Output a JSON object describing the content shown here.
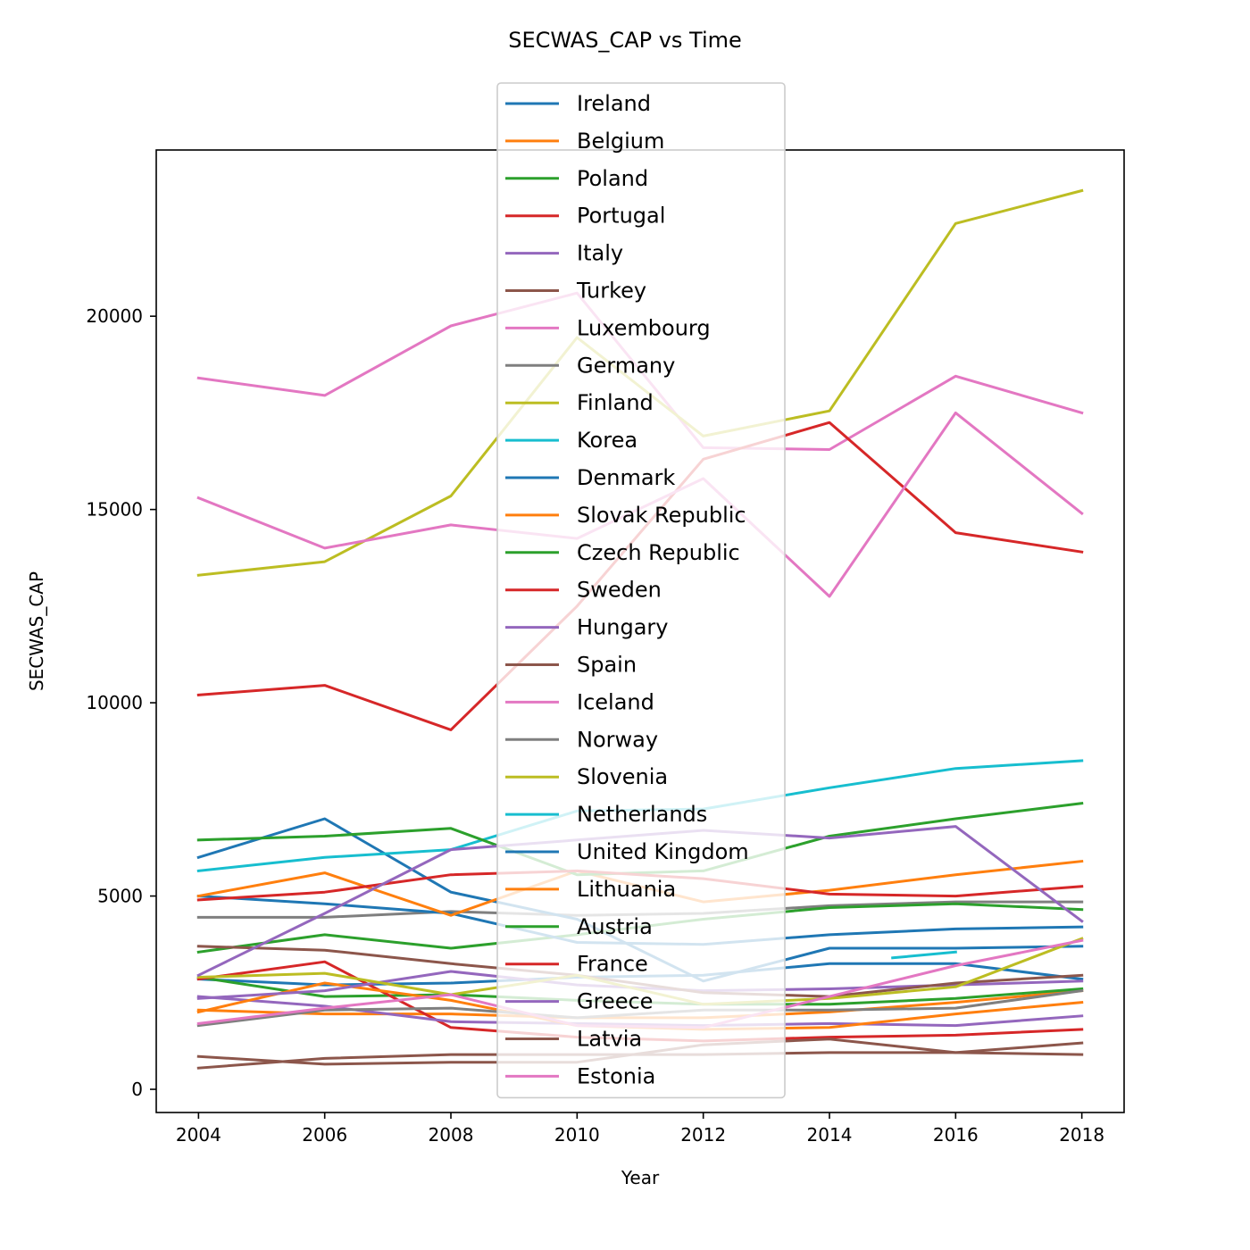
{
  "chart_data": {
    "type": "line",
    "title": "SECWAS_CAP vs Time",
    "xlabel": "Year",
    "ylabel": "SECWAS_CAP",
    "xlim": [
      2003.33,
      2018.67
    ],
    "ylim": [
      -600,
      24300
    ],
    "x_ticks": [
      2004,
      2006,
      2008,
      2010,
      2012,
      2014,
      2016,
      2018
    ],
    "y_ticks": [
      0,
      5000,
      10000,
      15000,
      20000
    ],
    "grid": false,
    "legend_position": "top-center",
    "series": [
      {
        "name": "Ireland",
        "color": "#1f77b4",
        "points": [
          [
            2004,
            2850
          ],
          [
            2006,
            2700
          ],
          [
            2008,
            2750
          ],
          [
            2010,
            2900
          ],
          [
            2012,
            2950
          ],
          [
            2014,
            3250
          ],
          [
            2016,
            3250
          ],
          [
            2018,
            2850
          ]
        ]
      },
      {
        "name": "Belgium",
        "color": "#ff7f0e",
        "points": [
          [
            2004,
            2050
          ],
          [
            2006,
            1950
          ],
          [
            2008,
            1950
          ],
          [
            2010,
            1850
          ],
          [
            2012,
            1850
          ],
          [
            2014,
            2000
          ],
          [
            2016,
            2250
          ],
          [
            2018,
            2550
          ]
        ]
      },
      {
        "name": "Poland",
        "color": "#2ca02c",
        "points": [
          [
            2004,
            2900
          ],
          [
            2006,
            2400
          ],
          [
            2008,
            2450
          ],
          [
            2010,
            2300
          ],
          [
            2012,
            2200
          ],
          [
            2014,
            2200
          ],
          [
            2016,
            2350
          ],
          [
            2018,
            2600
          ]
        ]
      },
      {
        "name": "Portugal",
        "color": "#d62728",
        "points": [
          [
            2004,
            2850
          ],
          [
            2006,
            3300
          ],
          [
            2008,
            1600
          ],
          [
            2010,
            1350
          ],
          [
            2012,
            1250
          ],
          [
            2014,
            1350
          ],
          [
            2016,
            1400
          ],
          [
            2018,
            1550
          ]
        ]
      },
      {
        "name": "Italy",
        "color": "#9467bd",
        "points": [
          [
            2004,
            2400
          ],
          [
            2006,
            2150
          ],
          [
            2008,
            1750
          ],
          [
            2010,
            1700
          ],
          [
            2012,
            1650
          ],
          [
            2014,
            1700
          ],
          [
            2016,
            1650
          ],
          [
            2018,
            1900
          ]
        ]
      },
      {
        "name": "Turkey",
        "color": "#8c564b",
        "points": [
          [
            2004,
            550
          ],
          [
            2006,
            800
          ],
          [
            2008,
            900
          ],
          [
            2010,
            900
          ],
          [
            2012,
            900
          ],
          [
            2014,
            950
          ],
          [
            2016,
            950
          ],
          [
            2018,
            900
          ]
        ]
      },
      {
        "name": "Luxembourg",
        "color": "#e377c2",
        "points": [
          [
            2004,
            18400
          ],
          [
            2006,
            17950
          ],
          [
            2008,
            19750
          ],
          [
            2010,
            20600
          ],
          [
            2012,
            16600
          ],
          [
            2014,
            16550
          ],
          [
            2016,
            18450
          ],
          [
            2018,
            17500
          ]
        ]
      },
      {
        "name": "Germany",
        "color": "#7f7f7f",
        "points": [
          [
            2004,
            4450
          ],
          [
            2006,
            4450
          ],
          [
            2008,
            4600
          ],
          [
            2010,
            4500
          ],
          [
            2012,
            4550
          ],
          [
            2014,
            4750
          ],
          [
            2016,
            4850
          ],
          [
            2018,
            4850
          ]
        ]
      },
      {
        "name": "Finland",
        "color": "#bcbd22",
        "points": [
          [
            2004,
            13300
          ],
          [
            2006,
            13650
          ],
          [
            2008,
            15350
          ],
          [
            2010,
            19450
          ],
          [
            2012,
            16900
          ],
          [
            2014,
            17550
          ],
          [
            2016,
            22400
          ],
          [
            2018,
            23250
          ]
        ]
      },
      {
        "name": "Korea",
        "color": "#17becf",
        "points": [
          [
            2015,
            3400
          ],
          [
            2016,
            3550
          ]
        ]
      },
      {
        "name": "Denmark",
        "color": "#1f77b4",
        "points": [
          [
            2004,
            6000
          ],
          [
            2006,
            7000
          ],
          [
            2008,
            5100
          ],
          [
            2010,
            4400
          ],
          [
            2012,
            2800
          ],
          [
            2014,
            3650
          ],
          [
            2016,
            3650
          ],
          [
            2018,
            3700
          ]
        ]
      },
      {
        "name": "Slovak Republic",
        "color": "#ff7f0e",
        "points": [
          [
            2004,
            2000
          ],
          [
            2006,
            2750
          ],
          [
            2008,
            2300
          ],
          [
            2010,
            1650
          ],
          [
            2012,
            1550
          ],
          [
            2014,
            1600
          ],
          [
            2016,
            1950
          ],
          [
            2018,
            2250
          ]
        ]
      },
      {
        "name": "Czech Republic",
        "color": "#2ca02c",
        "points": [
          [
            2004,
            3550
          ],
          [
            2006,
            4000
          ],
          [
            2008,
            3650
          ],
          [
            2010,
            4000
          ],
          [
            2012,
            4400
          ],
          [
            2014,
            4700
          ],
          [
            2016,
            4800
          ],
          [
            2018,
            4650
          ]
        ]
      },
      {
        "name": "Sweden",
        "color": "#d62728",
        "points": [
          [
            2004,
            10200
          ],
          [
            2006,
            10450
          ],
          [
            2008,
            9300
          ],
          [
            2010,
            12500
          ],
          [
            2012,
            16300
          ],
          [
            2014,
            17250
          ],
          [
            2016,
            14400
          ],
          [
            2018,
            13900
          ]
        ]
      },
      {
        "name": "Hungary",
        "color": "#9467bd",
        "points": [
          [
            2004,
            2350
          ],
          [
            2006,
            2550
          ],
          [
            2008,
            3050
          ],
          [
            2010,
            2700
          ],
          [
            2012,
            2550
          ],
          [
            2014,
            2600
          ],
          [
            2016,
            2700
          ],
          [
            2018,
            2800
          ]
        ]
      },
      {
        "name": "Spain",
        "color": "#8c564b",
        "points": [
          [
            2004,
            3700
          ],
          [
            2006,
            3600
          ],
          [
            2008,
            3250
          ],
          [
            2010,
            2950
          ],
          [
            2012,
            2500
          ],
          [
            2014,
            2400
          ],
          [
            2016,
            2750
          ],
          [
            2018,
            2950
          ]
        ]
      },
      {
        "name": "Iceland",
        "color": "#e377c2",
        "points": [
          [
            2004,
            15300
          ],
          [
            2006,
            14000
          ],
          [
            2008,
            14600
          ],
          [
            2010,
            14250
          ],
          [
            2012,
            15800
          ],
          [
            2014,
            12750
          ],
          [
            2016,
            17500
          ],
          [
            2018,
            14900
          ]
        ]
      },
      {
        "name": "Norway",
        "color": "#7f7f7f",
        "points": [
          [
            2004,
            1650
          ],
          [
            2006,
            2050
          ],
          [
            2008,
            2100
          ],
          [
            2010,
            1850
          ],
          [
            2012,
            2050
          ],
          [
            2014,
            2050
          ],
          [
            2016,
            2100
          ],
          [
            2018,
            2550
          ]
        ]
      },
      {
        "name": "Slovenia",
        "color": "#bcbd22",
        "points": [
          [
            2004,
            2900
          ],
          [
            2006,
            3000
          ],
          [
            2008,
            2450
          ],
          [
            2010,
            2950
          ],
          [
            2012,
            2200
          ],
          [
            2014,
            2350
          ],
          [
            2016,
            2650
          ],
          [
            2018,
            3900
          ]
        ]
      },
      {
        "name": "Netherlands",
        "color": "#17becf",
        "points": [
          [
            2004,
            5650
          ],
          [
            2006,
            6000
          ],
          [
            2008,
            6200
          ],
          [
            2010,
            7200
          ],
          [
            2012,
            7250
          ],
          [
            2014,
            7800
          ],
          [
            2016,
            8300
          ],
          [
            2018,
            8500
          ]
        ]
      },
      {
        "name": "United Kingdom",
        "color": "#1f77b4",
        "points": [
          [
            2004,
            5000
          ],
          [
            2006,
            4800
          ],
          [
            2008,
            4550
          ],
          [
            2010,
            3800
          ],
          [
            2012,
            3750
          ],
          [
            2014,
            4000
          ],
          [
            2016,
            4150
          ],
          [
            2018,
            4200
          ]
        ]
      },
      {
        "name": "Lithuania",
        "color": "#ff7f0e",
        "points": [
          [
            2004,
            5000
          ],
          [
            2006,
            5600
          ],
          [
            2008,
            4500
          ],
          [
            2010,
            5650
          ],
          [
            2012,
            4850
          ],
          [
            2014,
            5150
          ],
          [
            2016,
            5550
          ],
          [
            2018,
            5900
          ]
        ]
      },
      {
        "name": "Austria",
        "color": "#2ca02c",
        "points": [
          [
            2004,
            6450
          ],
          [
            2006,
            6550
          ],
          [
            2008,
            6750
          ],
          [
            2010,
            5550
          ],
          [
            2012,
            5650
          ],
          [
            2014,
            6550
          ],
          [
            2016,
            7000
          ],
          [
            2018,
            7400
          ]
        ]
      },
      {
        "name": "France",
        "color": "#d62728",
        "points": [
          [
            2004,
            4900
          ],
          [
            2006,
            5100
          ],
          [
            2008,
            5550
          ],
          [
            2010,
            5650
          ],
          [
            2012,
            5450
          ],
          [
            2014,
            5050
          ],
          [
            2016,
            5000
          ],
          [
            2018,
            5250
          ]
        ]
      },
      {
        "name": "Greece",
        "color": "#9467bd",
        "points": [
          [
            2004,
            2950
          ],
          [
            2006,
            4550
          ],
          [
            2008,
            6200
          ],
          [
            2010,
            6450
          ],
          [
            2012,
            6700
          ],
          [
            2014,
            6500
          ],
          [
            2016,
            6800
          ],
          [
            2018,
            4350
          ]
        ]
      },
      {
        "name": "Latvia",
        "color": "#8c564b",
        "points": [
          [
            2004,
            850
          ],
          [
            2006,
            650
          ],
          [
            2008,
            700
          ],
          [
            2010,
            700
          ],
          [
            2012,
            1150
          ],
          [
            2014,
            1300
          ],
          [
            2016,
            950
          ],
          [
            2018,
            1200
          ]
        ]
      },
      {
        "name": "Estonia",
        "color": "#e377c2",
        "points": [
          [
            2004,
            1700
          ],
          [
            2006,
            2100
          ],
          [
            2008,
            2450
          ],
          [
            2010,
            1650
          ],
          [
            2012,
            1600
          ],
          [
            2014,
            2400
          ],
          [
            2016,
            3200
          ],
          [
            2018,
            3850
          ]
        ]
      }
    ]
  }
}
